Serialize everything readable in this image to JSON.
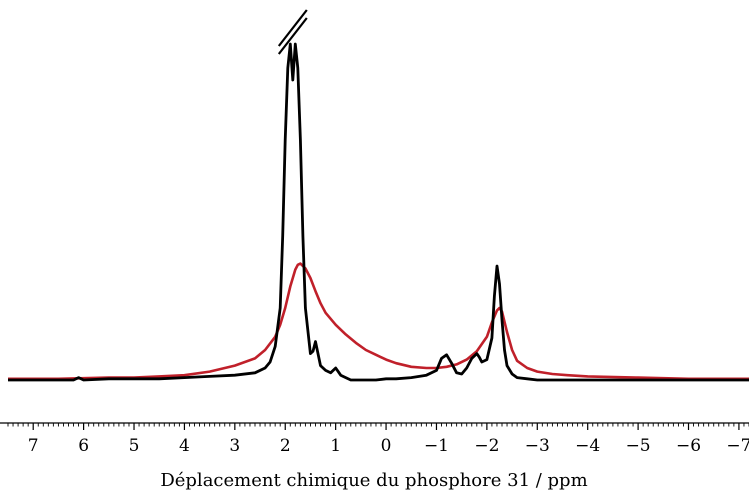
{
  "chart_data": {
    "type": "line",
    "title": "",
    "xlabel": "Déplacement chimique du phosphore 31 / ppm",
    "ylabel": "",
    "x_reversed": true,
    "xlim": [
      7.5,
      -7.2
    ],
    "ylim": [
      -0.15,
      3.0
    ],
    "y_axis_visible": false,
    "grid": false,
    "x_tick_labels": [
      "7",
      "6",
      "5",
      "4",
      "3",
      "2",
      "1",
      "0",
      "−1",
      "−2",
      "−3",
      "−4",
      "−5",
      "−6",
      "−7"
    ],
    "x_tick_values": [
      7,
      6,
      5,
      4,
      3,
      2,
      1,
      0,
      -1,
      -2,
      -3,
      -4,
      -5,
      -6,
      -7
    ],
    "axis_break_marker": {
      "x": 1.85,
      "y_at_break": 2.8
    },
    "series": [
      {
        "color": "#c0202a",
        "x": [
          7.5,
          6.5,
          5.5,
          5.0,
          4.5,
          4.0,
          3.5,
          3.0,
          2.6,
          2.4,
          2.2,
          2.1,
          2.0,
          1.9,
          1.8,
          1.75,
          1.7,
          1.6,
          1.5,
          1.4,
          1.3,
          1.2,
          1.0,
          0.8,
          0.6,
          0.4,
          0.2,
          0.0,
          -0.2,
          -0.5,
          -0.8,
          -1.0,
          -1.2,
          -1.4,
          -1.6,
          -1.8,
          -2.0,
          -2.1,
          -2.2,
          -2.25,
          -2.3,
          -2.4,
          -2.5,
          -2.6,
          -2.8,
          -3.0,
          -3.3,
          -3.6,
          -4.0,
          -5.0,
          -6.0,
          -7.2
        ],
        "y": [
          0.01,
          0.01,
          0.02,
          0.02,
          0.03,
          0.04,
          0.07,
          0.12,
          0.18,
          0.25,
          0.36,
          0.46,
          0.6,
          0.78,
          0.92,
          0.96,
          0.97,
          0.93,
          0.85,
          0.74,
          0.64,
          0.56,
          0.46,
          0.38,
          0.31,
          0.25,
          0.21,
          0.17,
          0.14,
          0.11,
          0.1,
          0.1,
          0.11,
          0.13,
          0.17,
          0.24,
          0.36,
          0.48,
          0.58,
          0.6,
          0.57,
          0.4,
          0.25,
          0.16,
          0.1,
          0.07,
          0.05,
          0.04,
          0.03,
          0.02,
          0.01,
          0.01
        ]
      },
      {
        "color": "#000000",
        "x": [
          7.5,
          7.0,
          6.5,
          6.2,
          6.1,
          6.0,
          5.5,
          5.0,
          4.5,
          4.0,
          3.5,
          3.0,
          2.6,
          2.4,
          2.3,
          2.2,
          2.1,
          2.05,
          2.0,
          1.95,
          1.9,
          1.85,
          1.8,
          1.75,
          1.7,
          1.65,
          1.6,
          1.5,
          1.45,
          1.4,
          1.35,
          1.3,
          1.2,
          1.1,
          1.0,
          0.95,
          0.9,
          0.8,
          0.7,
          0.6,
          0.4,
          0.2,
          0.0,
          -0.2,
          -0.5,
          -0.8,
          -1.0,
          -1.1,
          -1.2,
          -1.3,
          -1.4,
          -1.5,
          -1.6,
          -1.7,
          -1.8,
          -1.85,
          -1.9,
          -2.0,
          -2.1,
          -2.15,
          -2.2,
          -2.25,
          -2.3,
          -2.35,
          -2.4,
          -2.5,
          -2.6,
          -2.8,
          -3.0,
          -3.5,
          -4.0,
          -5.0,
          -6.0,
          -7.2
        ],
        "y": [
          0.0,
          0.0,
          0.0,
          0.0,
          0.02,
          0.0,
          0.01,
          0.01,
          0.01,
          0.02,
          0.03,
          0.04,
          0.06,
          0.1,
          0.15,
          0.28,
          0.6,
          1.2,
          2.0,
          2.6,
          2.8,
          2.5,
          2.8,
          2.6,
          2.0,
          1.2,
          0.6,
          0.22,
          0.24,
          0.32,
          0.22,
          0.12,
          0.08,
          0.06,
          0.1,
          0.07,
          0.04,
          0.02,
          0.0,
          0.0,
          0.0,
          0.0,
          0.01,
          0.01,
          0.02,
          0.04,
          0.08,
          0.18,
          0.21,
          0.14,
          0.06,
          0.05,
          0.1,
          0.18,
          0.22,
          0.19,
          0.15,
          0.17,
          0.35,
          0.7,
          0.95,
          0.8,
          0.5,
          0.25,
          0.12,
          0.05,
          0.02,
          0.01,
          0.0,
          0.0,
          0.0,
          0.0,
          0.0,
          0.0
        ]
      }
    ]
  }
}
